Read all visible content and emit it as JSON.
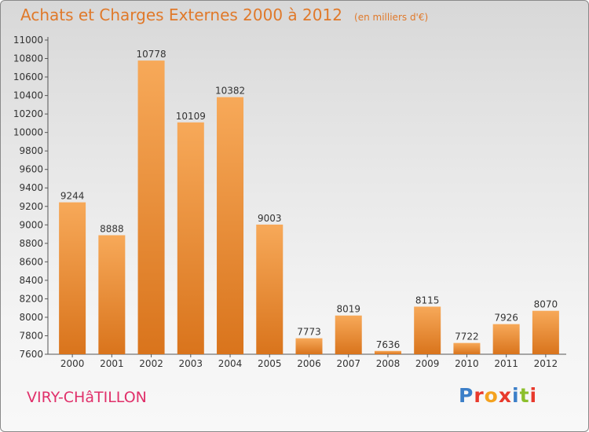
{
  "header": {
    "title": "Achats et Charges Externes 2000 à 2012",
    "subtitle": "(en milliers d'€)"
  },
  "footer": {
    "city": "VIRY-CHâTILLON",
    "logo": "Proxiti"
  },
  "colors": {
    "bar_light": "#f7a959",
    "bar_dark": "#d9741c",
    "title": "#e0792a",
    "city": "#e0306a",
    "logo_letters": [
      "#3c7fc8",
      "#e8392c",
      "#f4a21f",
      "#e8392c",
      "#3c7fc8",
      "#8cbf2c",
      "#e8392c"
    ]
  },
  "chart_data": {
    "type": "bar",
    "title": "Achats et Charges Externes 2000 à 2012",
    "subtitle": "(en milliers d'€)",
    "categories": [
      "2000",
      "2001",
      "2002",
      "2003",
      "2004",
      "2005",
      "2006",
      "2007",
      "2008",
      "2009",
      "2010",
      "2011",
      "2012"
    ],
    "values": [
      9244,
      8888,
      10778,
      10109,
      10382,
      9003,
      7773,
      8019,
      7636,
      8115,
      7722,
      7926,
      8070
    ],
    "data_labels": [
      "9244",
      "8888",
      "10778",
      "10109",
      "10382",
      "9003",
      "7773",
      "8019",
      "7636",
      "8115",
      "7722",
      "7926",
      "8070"
    ],
    "ylim": [
      7600,
      11000
    ],
    "yticks": [
      "7600",
      "7800",
      "8000",
      "8200",
      "8400",
      "8600",
      "8800",
      "9000",
      "9200",
      "9400",
      "9600",
      "9800",
      "10000",
      "10200",
      "10400",
      "10600",
      "10800",
      "11000"
    ],
    "xlabel": "",
    "ylabel": "",
    "grid": false,
    "legend": "none"
  }
}
